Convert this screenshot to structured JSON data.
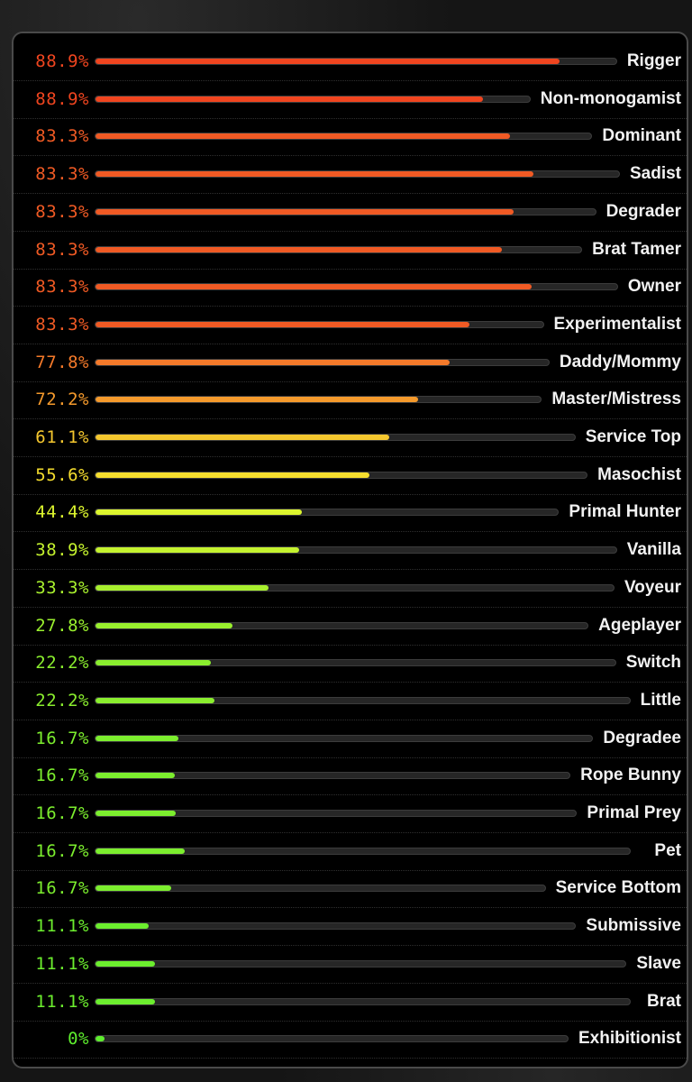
{
  "results": [
    {
      "percent": "88.9%",
      "label": "Rigger",
      "value": 0.889,
      "color": "#f0451f"
    },
    {
      "percent": "88.9%",
      "label": "Non-monogamist",
      "value": 0.889,
      "color": "#f0451f"
    },
    {
      "percent": "83.3%",
      "label": "Dominant",
      "value": 0.833,
      "color": "#f05a24"
    },
    {
      "percent": "83.3%",
      "label": "Sadist",
      "value": 0.833,
      "color": "#f05a24"
    },
    {
      "percent": "83.3%",
      "label": "Degrader",
      "value": 0.833,
      "color": "#f05a24"
    },
    {
      "percent": "83.3%",
      "label": "Brat Tamer",
      "value": 0.833,
      "color": "#f05a24"
    },
    {
      "percent": "83.3%",
      "label": "Owner",
      "value": 0.833,
      "color": "#f05a24"
    },
    {
      "percent": "83.3%",
      "label": "Experimentalist",
      "value": 0.833,
      "color": "#f05a24"
    },
    {
      "percent": "77.8%",
      "label": "Daddy/Mommy",
      "value": 0.778,
      "color": "#f57a2a"
    },
    {
      "percent": "72.2%",
      "label": "Master/Mistress",
      "value": 0.722,
      "color": "#f59a2c"
    },
    {
      "percent": "61.1%",
      "label": "Service Top",
      "value": 0.611,
      "color": "#f5c72e"
    },
    {
      "percent": "55.6%",
      "label": "Masochist",
      "value": 0.556,
      "color": "#f5dd2e"
    },
    {
      "percent": "44.4%",
      "label": "Primal Hunter",
      "value": 0.444,
      "color": "#dcf52e"
    },
    {
      "percent": "38.9%",
      "label": "Vanilla",
      "value": 0.389,
      "color": "#c4f22e"
    },
    {
      "percent": "33.3%",
      "label": "Voyeur",
      "value": 0.333,
      "color": "#a8f02e"
    },
    {
      "percent": "27.8%",
      "label": "Ageplayer",
      "value": 0.278,
      "color": "#9af02e"
    },
    {
      "percent": "22.2%",
      "label": "Switch",
      "value": 0.222,
      "color": "#8aee2e"
    },
    {
      "percent": "22.2%",
      "label": "Little",
      "value": 0.222,
      "color": "#8aee2e"
    },
    {
      "percent": "16.7%",
      "label": "Degradee",
      "value": 0.167,
      "color": "#7cee2e"
    },
    {
      "percent": "16.7%",
      "label": "Rope Bunny",
      "value": 0.167,
      "color": "#7cee2e"
    },
    {
      "percent": "16.7%",
      "label": "Primal Prey",
      "value": 0.167,
      "color": "#7cee2e"
    },
    {
      "percent": "16.7%",
      "label": "Pet",
      "value": 0.167,
      "color": "#7cee2e"
    },
    {
      "percent": "16.7%",
      "label": "Service Bottom",
      "value": 0.167,
      "color": "#7cee2e"
    },
    {
      "percent": "11.1%",
      "label": "Submissive",
      "value": 0.111,
      "color": "#6cee2e"
    },
    {
      "percent": "11.1%",
      "label": "Slave",
      "value": 0.111,
      "color": "#6cee2e"
    },
    {
      "percent": "11.1%",
      "label": "Brat",
      "value": 0.111,
      "color": "#6cee2e"
    },
    {
      "percent": "0%",
      "label": "Exhibitionist",
      "value": 0,
      "color": "#5eee2e"
    }
  ]
}
